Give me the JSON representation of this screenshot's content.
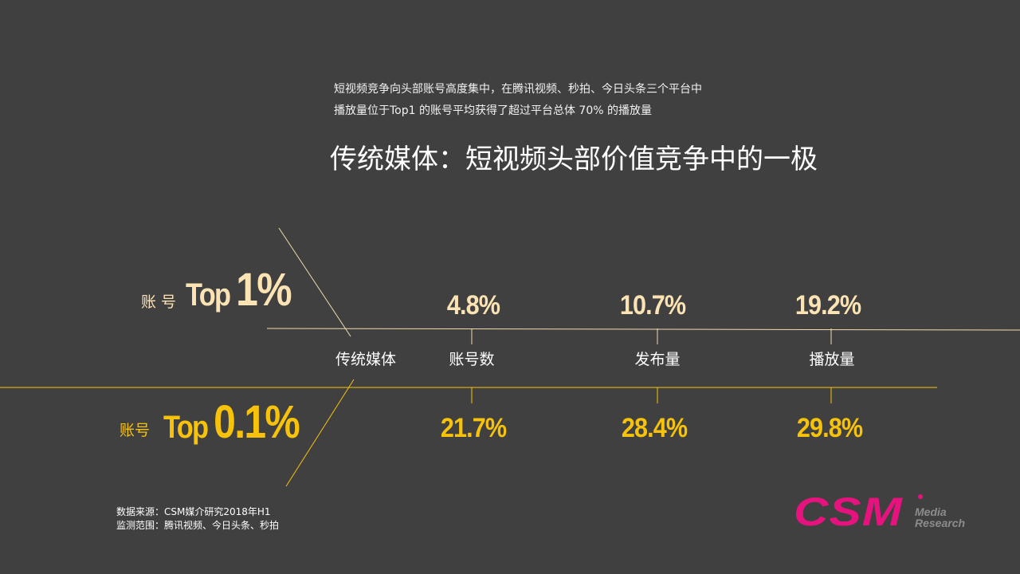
{
  "intro": {
    "line1": "短视频竞争向头部账号高度集中，在腾讯视频、秒拍、今日头条三个平台中",
    "line2": "播放量位于Top1 的账号平均获得了超过平台总体 70% 的播放量"
  },
  "title": "传统媒体：短视频头部价值竞争中的一极",
  "tiers": {
    "top1": {
      "label": "账 号",
      "prefix": "Top ",
      "value": "1%"
    },
    "top01": {
      "label": "账号",
      "prefix": "Top ",
      "value": "0.1%"
    }
  },
  "center_label": "传统媒体",
  "metrics": [
    "账号数",
    "发布量",
    "播放量"
  ],
  "values_top1": [
    "4.8%",
    "10.7%",
    "19.2%"
  ],
  "values_top01": [
    "21.7%",
    "28.4%",
    "29.8%"
  ],
  "source": {
    "line1": "数据来源：CSM媒介研究2018年H1",
    "line2": "监测范围：腾讯视频、今日头条、秒拍"
  },
  "logo": {
    "mark": "CSM",
    "line1": "Media",
    "line2": "Research"
  },
  "colors": {
    "background": "#404040",
    "top1": "#fce3b4",
    "top01": "#f7c20a",
    "logo": "#e6127e"
  }
}
